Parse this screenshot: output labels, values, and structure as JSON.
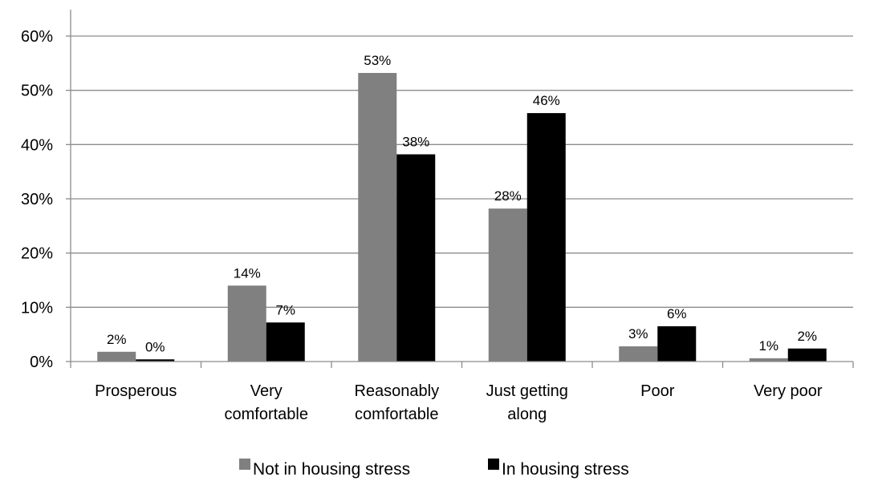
{
  "chart_data": {
    "type": "bar",
    "categories": [
      [
        "Prosperous"
      ],
      [
        "Very",
        "comfortable"
      ],
      [
        "Reasonably",
        "comfortable"
      ],
      [
        "Just getting",
        "along"
      ],
      [
        "Poor"
      ],
      [
        "Very poor"
      ]
    ],
    "series": [
      {
        "name": "Not in housing stress",
        "color": "#808080",
        "values": [
          1.8,
          14,
          53.2,
          28.2,
          2.8,
          0.6
        ],
        "labels": [
          "2%",
          "14%",
          "53%",
          "28%",
          "3%",
          "1%"
        ]
      },
      {
        "name": "In housing stress",
        "color": "#000000",
        "values": [
          0.4,
          7.2,
          38.2,
          45.8,
          6.5,
          2.4
        ],
        "labels": [
          "0%",
          "7%",
          "38%",
          "46%",
          "6%",
          "2%"
        ]
      }
    ],
    "yticks": [
      "0%",
      "10%",
      "20%",
      "30%",
      "40%",
      "50%",
      "60%"
    ],
    "ylim": [
      0,
      60
    ],
    "grid": true,
    "legend": "bottom"
  }
}
